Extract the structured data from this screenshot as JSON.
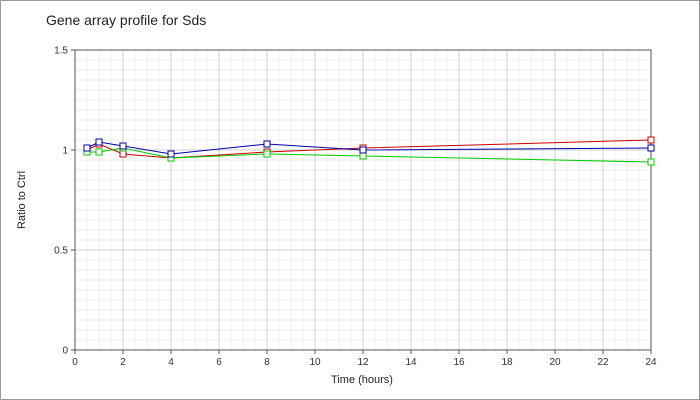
{
  "chart_data": {
    "type": "line",
    "title": "Gene array profile for Sds",
    "xlabel": "Time (hours)",
    "ylabel": "Ratio to Ctrl",
    "xlim": [
      0,
      24
    ],
    "ylim": [
      0,
      1.5
    ],
    "x_ticks": [
      "0",
      "2",
      "4",
      "6",
      "8",
      "10",
      "12",
      "14",
      "16",
      "18",
      "20",
      "22",
      "24"
    ],
    "y_ticks": [
      "0",
      "0.5",
      "1",
      "1.5"
    ],
    "x_tick_values": [
      0,
      2,
      4,
      6,
      8,
      10,
      12,
      14,
      16,
      18,
      20,
      22,
      24
    ],
    "y_tick_values": [
      0,
      0.5,
      1,
      1.5
    ],
    "grid": true,
    "legend": "none",
    "marker": "square",
    "series": [
      {
        "color": "#cc0000",
        "x": [
          0.5,
          1,
          2,
          4,
          8,
          12,
          24
        ],
        "values": [
          1.0,
          1.03,
          0.98,
          0.96,
          0.99,
          1.01,
          1.05
        ]
      },
      {
        "color": "#00cc00",
        "x": [
          0.5,
          1,
          2,
          4,
          8,
          12,
          24
        ],
        "values": [
          0.99,
          0.99,
          1.01,
          0.96,
          0.98,
          0.97,
          0.94
        ]
      },
      {
        "color": "#0000aa",
        "x": [
          0.5,
          1,
          2,
          4,
          8,
          12,
          24
        ],
        "values": [
          1.01,
          1.04,
          1.02,
          0.98,
          1.03,
          1.0,
          1.01
        ]
      }
    ]
  }
}
